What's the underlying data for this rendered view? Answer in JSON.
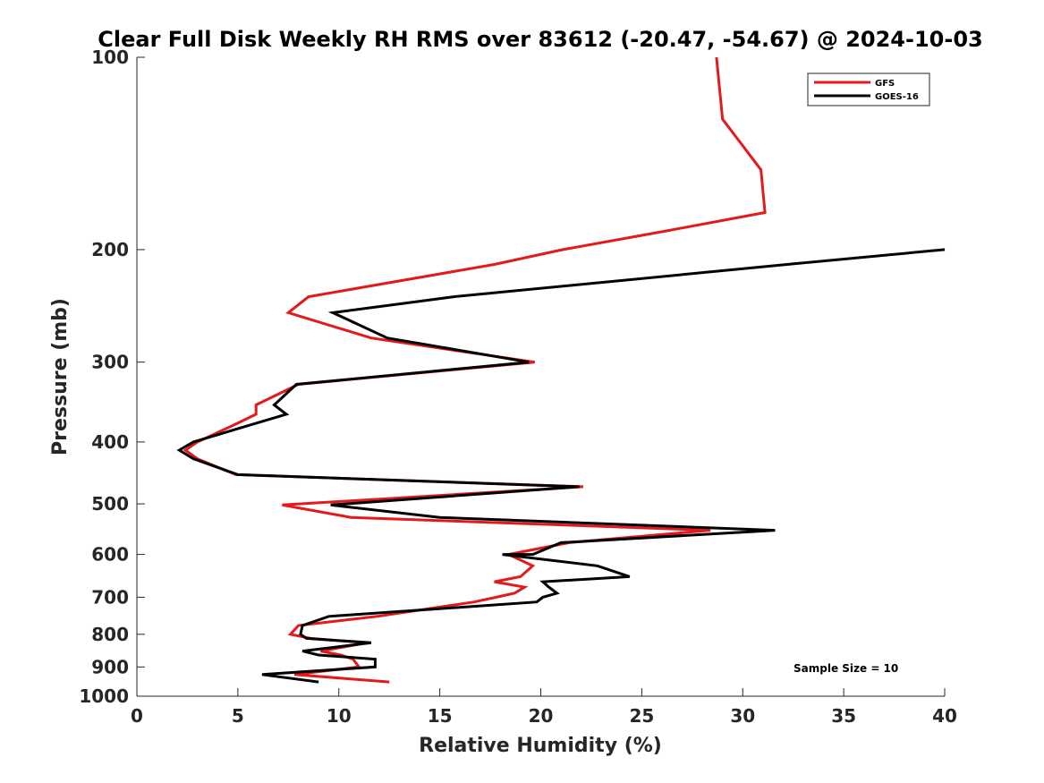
{
  "chart_data": {
    "type": "line",
    "title": "Clear Full Disk Weekly RH RMS over 83612 (-20.47, -54.67) @ 2024-10-03",
    "xlabel": "Relative Humidity (%)",
    "ylabel": "Pressure (mb)",
    "xlim": [
      0,
      40
    ],
    "ylim": [
      1000,
      100
    ],
    "y_scale": "log",
    "y_reversed": true,
    "x_ticks": [
      0,
      5,
      10,
      15,
      20,
      25,
      30,
      35,
      40
    ],
    "y_ticks": [
      100,
      200,
      300,
      400,
      500,
      600,
      700,
      800,
      900,
      1000
    ],
    "grid": false,
    "legend_position": "top-right",
    "annotation": "Sample Size = 10",
    "series": [
      {
        "name": "GFS",
        "color": "#e31a1c",
        "points": [
          [
            28.7,
            100
          ],
          [
            29.0,
            125
          ],
          [
            30.9,
            150
          ],
          [
            31.1,
            175
          ],
          [
            26.2,
            187
          ],
          [
            21.1,
            200
          ],
          [
            17.7,
            211
          ],
          [
            8.5,
            237
          ],
          [
            7.5,
            251
          ],
          [
            11.6,
            275
          ],
          [
            19.7,
            300
          ],
          [
            8.0,
            325
          ],
          [
            5.9,
            350
          ],
          [
            5.9,
            362
          ],
          [
            4.9,
            375
          ],
          [
            3.0,
            400
          ],
          [
            2.4,
            412
          ],
          [
            3.0,
            425
          ],
          [
            4.9,
            450
          ],
          [
            22.1,
            470
          ],
          [
            7.2,
            502
          ],
          [
            10.6,
            525
          ],
          [
            28.4,
            550
          ],
          [
            21.4,
            575
          ],
          [
            18.4,
            600
          ],
          [
            19.6,
            625
          ],
          [
            19.0,
            650
          ],
          [
            17.7,
            662
          ],
          [
            19.2,
            675
          ],
          [
            18.7,
            690
          ],
          [
            17.8,
            700
          ],
          [
            16.7,
            712
          ],
          [
            11.9,
            750
          ],
          [
            8.0,
            775
          ],
          [
            7.6,
            800
          ],
          [
            8.6,
            812
          ],
          [
            11.4,
            825
          ],
          [
            9.1,
            850
          ],
          [
            10.1,
            862
          ],
          [
            10.7,
            875
          ],
          [
            11.0,
            900
          ],
          [
            7.8,
            925
          ],
          [
            12.5,
            950
          ]
        ]
      },
      {
        "name": "GOES-16",
        "color": "#000000",
        "points": [
          [
            40.0,
            200
          ],
          [
            32.2,
            211
          ],
          [
            15.7,
            237
          ],
          [
            9.7,
            251
          ],
          [
            12.4,
            275
          ],
          [
            19.4,
            300
          ],
          [
            7.9,
            325
          ],
          [
            6.8,
            350
          ],
          [
            7.4,
            362
          ],
          [
            2.8,
            400
          ],
          [
            2.1,
            412
          ],
          [
            2.8,
            425
          ],
          [
            5.0,
            450
          ],
          [
            21.9,
            470
          ],
          [
            9.6,
            502
          ],
          [
            15.0,
            525
          ],
          [
            31.6,
            550
          ],
          [
            21.0,
            575
          ],
          [
            19.6,
            600
          ],
          [
            18.1,
            600
          ],
          [
            22.8,
            625
          ],
          [
            24.4,
            650
          ],
          [
            20.1,
            662
          ],
          [
            20.4,
            675
          ],
          [
            20.8,
            690
          ],
          [
            20.1,
            700
          ],
          [
            19.8,
            712
          ],
          [
            9.5,
            750
          ],
          [
            8.2,
            775
          ],
          [
            8.1,
            800
          ],
          [
            8.4,
            812
          ],
          [
            11.6,
            825
          ],
          [
            8.2,
            850
          ],
          [
            9.0,
            862
          ],
          [
            11.8,
            875
          ],
          [
            11.8,
            900
          ],
          [
            6.2,
            925
          ],
          [
            9.0,
            950
          ]
        ]
      }
    ]
  }
}
